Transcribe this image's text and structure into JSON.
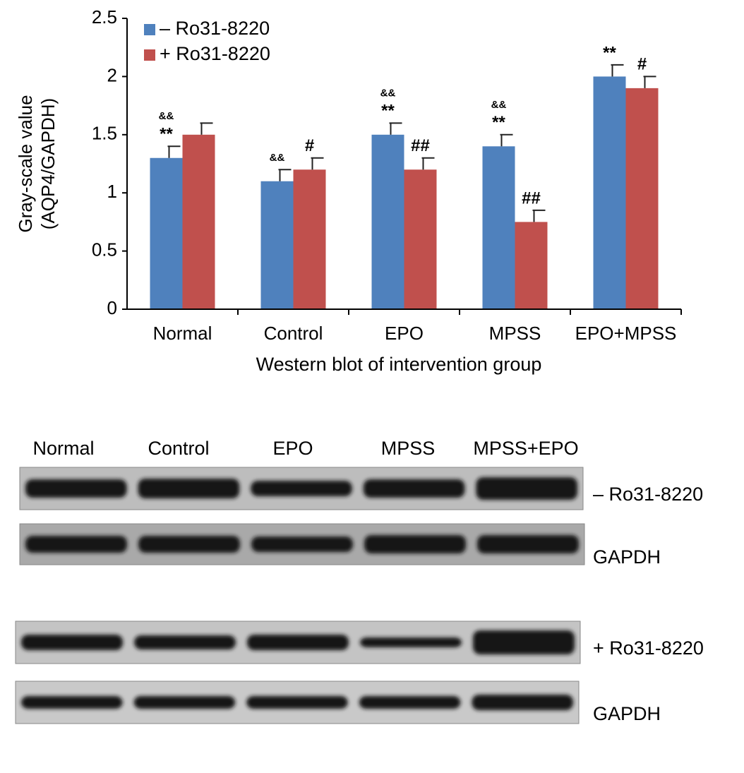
{
  "chart_data": {
    "type": "bar",
    "ylabel": [
      "Gray-scale value",
      "(AQP4/GAPDH)"
    ],
    "xlabel": "Western blot of intervention group",
    "categories": [
      "Normal",
      "Control",
      "EPO",
      "MPSS",
      "EPO+MPSS"
    ],
    "series": [
      {
        "name": "– Ro31-8220",
        "color": "#4f81bd",
        "values": [
          1.3,
          1.1,
          1.5,
          1.4,
          2.0
        ],
        "errors": [
          0.1,
          0.1,
          0.1,
          0.1,
          0.1
        ],
        "annotations": [
          [
            "&&",
            "**"
          ],
          [
            "&&"
          ],
          [
            "&&",
            "**"
          ],
          [
            "&&",
            "**"
          ],
          [
            "**"
          ]
        ]
      },
      {
        "name": "+ Ro31-8220",
        "color": "#c0504d",
        "values": [
          1.5,
          1.2,
          1.2,
          0.75,
          1.9
        ],
        "errors": [
          0.1,
          0.1,
          0.1,
          0.1,
          0.1
        ],
        "annotations": [
          [],
          [
            "#"
          ],
          [
            "##"
          ],
          [
            "##"
          ],
          [
            "#"
          ]
        ]
      }
    ],
    "ylim": [
      0,
      2.5
    ],
    "yticks": [
      0,
      0.5,
      1,
      1.5,
      2,
      2.5
    ],
    "grid": false,
    "legend": "top-left"
  },
  "blot": {
    "lanes": [
      "Normal",
      "Control",
      "EPO",
      "MPSS",
      "MPSS+EPO"
    ],
    "rows": [
      "– Ro31-8220",
      "GAPDH",
      "+ Ro31-8220",
      "GAPDH"
    ]
  }
}
